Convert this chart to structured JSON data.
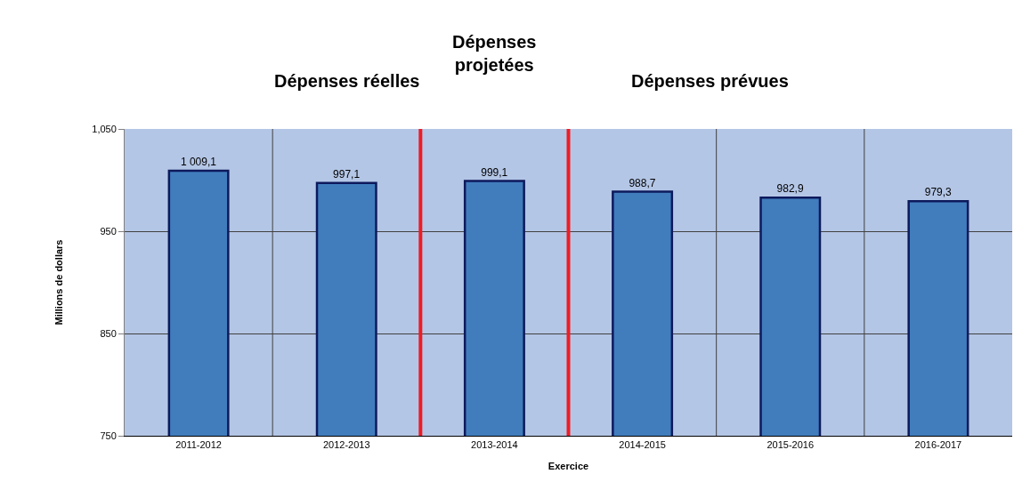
{
  "chart_data": {
    "type": "bar",
    "categories": [
      "2011-2012",
      "2012-2013",
      "2013-2014",
      "2014-2015",
      "2015-2016",
      "2016-2017"
    ],
    "values": [
      1009.1,
      997.1,
      999.1,
      988.7,
      982.9,
      979.3
    ],
    "value_labels": [
      "1 009,1",
      "997,1",
      "999,1",
      "988,7",
      "982,9",
      "979,3"
    ],
    "color": "#417dbd",
    "xlabel": "Exercice",
    "ylabel": "Millions de dollars",
    "ylim": [
      750,
      1050
    ],
    "yticks": [
      750,
      850,
      950,
      {
        "value": 1050,
        "label": "1,050"
      }
    ],
    "grid": true,
    "annotations": [
      "Dépenses réelles",
      "Dépenses\nprojetées",
      "Dépenses prévues"
    ]
  }
}
